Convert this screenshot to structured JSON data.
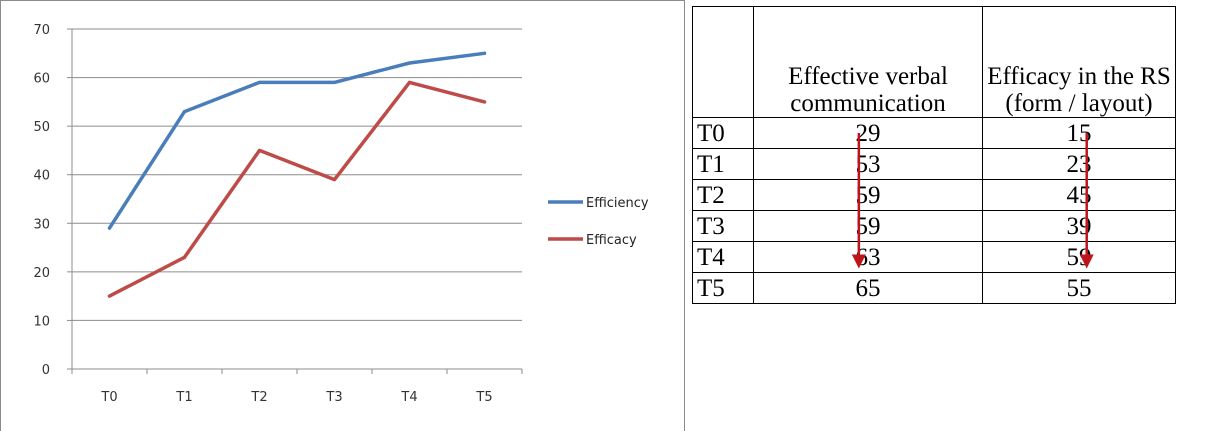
{
  "chart_data": {
    "type": "line",
    "title": "",
    "xlabel": "",
    "ylabel": "",
    "categories": [
      "T0",
      "T1",
      "T2",
      "T3",
      "T4",
      "T5"
    ],
    "ylim": [
      0,
      70
    ],
    "yticks": [
      "0",
      "10",
      "20",
      "30",
      "40",
      "50",
      "60",
      "70"
    ],
    "grid": true,
    "legend_position": "right",
    "series": [
      {
        "name": "Efficiency",
        "color": "#4a7ebb",
        "values": [
          29,
          53,
          59,
          59,
          63,
          65
        ]
      },
      {
        "name": "Efficacy",
        "color": "#be4b48",
        "values": [
          15,
          23,
          45,
          39,
          59,
          55
        ]
      }
    ]
  },
  "table": {
    "headers": [
      "",
      "Effective verbal communication",
      "Efficacy in the RS (form / layout)"
    ],
    "rows": [
      {
        "label": "T0",
        "a": "29",
        "b": "15"
      },
      {
        "label": "T1",
        "a": "53",
        "b": "23"
      },
      {
        "label": "T2",
        "a": "59",
        "b": "45"
      },
      {
        "label": "T3",
        "a": "59",
        "b": "39"
      },
      {
        "label": "T4",
        "a": "63",
        "b": "59"
      },
      {
        "label": "T5",
        "a": "65",
        "b": "55"
      }
    ],
    "arrow_color": "#c0141c"
  }
}
